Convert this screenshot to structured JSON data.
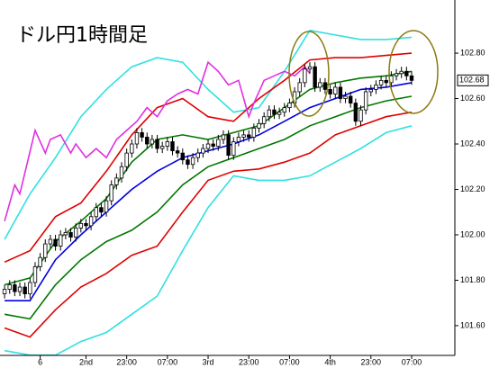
{
  "chart_data": {
    "type": "candlestick",
    "title": "ドル円1時間足",
    "xlim": [
      -0.9,
      88.5
    ],
    "ylim": [
      101.469,
      103.034
    ],
    "yticks": [
      {
        "value": 101.6,
        "label": "101.60"
      },
      {
        "value": 101.8,
        "label": "101.80"
      },
      {
        "value": 102.0,
        "label": "102.00"
      },
      {
        "value": 102.2,
        "label": "102.20"
      },
      {
        "value": 102.4,
        "label": "102.40"
      },
      {
        "value": 102.6,
        "label": "102.60"
      },
      {
        "value": 102.8,
        "label": "102.80"
      }
    ],
    "xticks": [
      {
        "value": 7,
        "label": "6"
      },
      {
        "value": 16,
        "label": "2nd"
      },
      {
        "value": 24,
        "label": "23:00"
      },
      {
        "value": 32,
        "label": "07:00"
      },
      {
        "value": 40,
        "label": "3rd"
      },
      {
        "value": 48,
        "label": "23:00"
      },
      {
        "value": 56,
        "label": "07:00"
      },
      {
        "value": 64,
        "label": "4th"
      },
      {
        "value": 72,
        "label": "23:00"
      },
      {
        "value": 80,
        "label": "07:00"
      }
    ],
    "current_price": 102.68,
    "x": [
      0,
      1,
      2,
      3,
      4,
      5,
      6,
      7,
      8,
      9,
      10,
      11,
      12,
      13,
      14,
      15,
      16,
      17,
      18,
      19,
      20,
      21,
      22,
      23,
      24,
      25,
      26,
      27,
      28,
      29,
      30,
      31,
      32,
      33,
      34,
      35,
      36,
      37,
      38,
      39,
      40,
      41,
      42,
      43,
      44,
      45,
      46,
      47,
      48,
      49,
      50,
      51,
      52,
      53,
      54,
      55,
      56,
      57,
      58,
      59,
      60,
      61,
      62,
      63,
      64,
      65,
      66,
      67,
      68,
      69,
      70,
      71,
      72,
      73,
      74,
      75,
      76,
      77,
      78,
      79,
      80
    ],
    "open": [
      101.74,
      101.76,
      101.78,
      101.75,
      101.77,
      101.74,
      101.79,
      101.86,
      101.9,
      101.96,
      101.98,
      101.95,
      102.0,
      102.01,
      101.99,
      102.03,
      102.05,
      102.04,
      102.08,
      102.12,
      102.1,
      102.15,
      102.22,
      102.25,
      102.3,
      102.36,
      102.4,
      102.45,
      102.43,
      102.4,
      102.42,
      102.38,
      102.39,
      102.41,
      102.37,
      102.36,
      102.33,
      102.31,
      102.34,
      102.36,
      102.38,
      102.4,
      102.39,
      102.42,
      102.44,
      102.35,
      102.41,
      102.43,
      102.44,
      102.43,
      102.47,
      102.49,
      102.52,
      102.55,
      102.53,
      102.54,
      102.56,
      102.58,
      102.63,
      102.67,
      102.73,
      102.74,
      102.65,
      102.67,
      102.64,
      102.62,
      102.65,
      102.6,
      102.61,
      102.58,
      102.5,
      102.55,
      102.63,
      102.64,
      102.66,
      102.68,
      102.67,
      102.7,
      102.71,
      102.72,
      102.7
    ],
    "high": [
      101.78,
      101.8,
      101.8,
      101.79,
      101.79,
      101.81,
      101.88,
      101.92,
      101.98,
      102.0,
      102.0,
      102.02,
      102.03,
      102.03,
      102.05,
      102.07,
      102.07,
      102.1,
      102.14,
      102.14,
      102.17,
      102.24,
      102.27,
      102.32,
      102.38,
      102.42,
      102.47,
      102.47,
      102.45,
      102.44,
      102.44,
      102.41,
      102.43,
      102.43,
      102.39,
      102.38,
      102.35,
      102.36,
      102.38,
      102.4,
      102.42,
      102.42,
      102.44,
      102.46,
      102.46,
      102.43,
      102.45,
      102.46,
      102.46,
      102.49,
      102.51,
      102.54,
      102.57,
      102.57,
      102.56,
      102.58,
      102.6,
      102.65,
      102.69,
      102.75,
      102.76,
      102.76,
      102.69,
      102.69,
      102.66,
      102.67,
      102.67,
      102.63,
      102.63,
      102.6,
      102.57,
      102.65,
      102.66,
      102.68,
      102.7,
      102.7,
      102.72,
      102.73,
      102.74,
      102.74,
      102.72
    ],
    "low": [
      101.72,
      101.74,
      101.73,
      101.73,
      101.72,
      101.72,
      101.77,
      101.84,
      101.88,
      101.94,
      101.93,
      101.93,
      101.98,
      101.97,
      101.97,
      102.01,
      102.02,
      102.02,
      102.06,
      102.08,
      102.08,
      102.13,
      102.2,
      102.23,
      102.28,
      102.34,
      102.38,
      102.41,
      102.38,
      102.38,
      102.36,
      102.36,
      102.37,
      102.35,
      102.34,
      102.31,
      102.29,
      102.29,
      102.32,
      102.34,
      102.36,
      102.37,
      102.37,
      102.4,
      102.33,
      102.33,
      102.39,
      102.41,
      102.41,
      102.41,
      102.45,
      102.47,
      102.5,
      102.51,
      102.51,
      102.52,
      102.54,
      102.56,
      102.61,
      102.65,
      102.71,
      102.63,
      102.63,
      102.62,
      102.6,
      102.6,
      102.58,
      102.58,
      102.56,
      102.48,
      102.48,
      102.53,
      102.61,
      102.62,
      102.64,
      102.65,
      102.65,
      102.68,
      102.69,
      102.68,
      102.66
    ],
    "close": [
      101.76,
      101.78,
      101.75,
      101.77,
      101.74,
      101.79,
      101.86,
      101.9,
      101.96,
      101.98,
      101.95,
      102.0,
      102.01,
      101.99,
      102.03,
      102.05,
      102.04,
      102.08,
      102.12,
      102.1,
      102.15,
      102.22,
      102.25,
      102.3,
      102.36,
      102.4,
      102.45,
      102.43,
      102.4,
      102.42,
      102.38,
      102.39,
      102.41,
      102.37,
      102.36,
      102.33,
      102.31,
      102.34,
      102.36,
      102.38,
      102.4,
      102.39,
      102.42,
      102.44,
      102.35,
      102.41,
      102.43,
      102.44,
      102.43,
      102.47,
      102.49,
      102.52,
      102.55,
      102.53,
      102.54,
      102.56,
      102.58,
      102.63,
      102.67,
      102.73,
      102.74,
      102.65,
      102.67,
      102.64,
      102.62,
      102.65,
      102.6,
      102.61,
      102.58,
      102.5,
      102.55,
      102.63,
      102.64,
      102.66,
      102.68,
      102.67,
      102.7,
      102.71,
      102.72,
      102.7,
      102.68
    ],
    "lines": [
      {
        "color": "#30e0e0",
        "x": [
          0,
          5,
          10,
          15,
          20,
          25,
          30,
          35,
          40,
          45,
          50,
          55,
          60,
          65,
          70,
          75,
          80
        ],
        "values": [
          101.98,
          102.18,
          102.34,
          102.52,
          102.64,
          102.74,
          102.78,
          102.76,
          102.64,
          102.54,
          102.56,
          102.72,
          102.9,
          102.88,
          102.86,
          102.86,
          102.87
        ]
      },
      {
        "color": "#30e0e0",
        "x": [
          0,
          5,
          10,
          15,
          20,
          25,
          30,
          35,
          40,
          45,
          50,
          55,
          60,
          65,
          70,
          75,
          80
        ],
        "values": [
          101.49,
          101.47,
          101.47,
          101.53,
          101.57,
          101.65,
          101.73,
          101.93,
          102.12,
          102.26,
          102.24,
          102.24,
          102.26,
          102.32,
          102.38,
          102.45,
          102.48
        ]
      },
      {
        "color": "#e00000",
        "x": [
          0,
          5,
          10,
          15,
          20,
          25,
          30,
          35,
          40,
          45,
          50,
          55,
          60,
          65,
          70,
          75,
          80
        ],
        "values": [
          101.88,
          101.93,
          102.08,
          102.14,
          102.28,
          102.44,
          102.56,
          102.6,
          102.52,
          102.5,
          102.6,
          102.68,
          102.77,
          102.78,
          102.78,
          102.79,
          102.8
        ]
      },
      {
        "color": "#e00000",
        "x": [
          0,
          5,
          10,
          15,
          20,
          25,
          30,
          35,
          40,
          45,
          50,
          55,
          60,
          65,
          70,
          75,
          80
        ],
        "values": [
          101.59,
          101.55,
          101.67,
          101.77,
          101.83,
          101.91,
          101.95,
          102.1,
          102.24,
          102.28,
          102.29,
          102.32,
          102.36,
          102.44,
          102.48,
          102.52,
          102.54
        ]
      },
      {
        "color": "#007800",
        "x": [
          0,
          5,
          10,
          15,
          20,
          25,
          30,
          35,
          40,
          45,
          50,
          55,
          60,
          65,
          70,
          75,
          80
        ],
        "values": [
          101.78,
          101.81,
          101.97,
          102.06,
          102.16,
          102.32,
          102.42,
          102.44,
          102.42,
          102.45,
          102.48,
          102.56,
          102.64,
          102.67,
          102.69,
          102.7,
          102.72
        ]
      },
      {
        "color": "#007800",
        "x": [
          0,
          5,
          10,
          15,
          20,
          25,
          30,
          35,
          40,
          45,
          50,
          55,
          60,
          65,
          70,
          75,
          80
        ],
        "values": [
          101.65,
          101.63,
          101.78,
          101.89,
          101.97,
          102.02,
          102.1,
          102.22,
          102.3,
          102.34,
          102.38,
          102.42,
          102.48,
          102.52,
          102.56,
          102.59,
          102.61
        ]
      },
      {
        "color": "#0000e0",
        "x": [
          0,
          5,
          10,
          15,
          20,
          25,
          30,
          35,
          40,
          45,
          50,
          55,
          60,
          65,
          70,
          75,
          80
        ],
        "values": [
          101.71,
          101.71,
          101.89,
          102.0,
          102.1,
          102.2,
          102.28,
          102.34,
          102.37,
          102.4,
          102.44,
          102.5,
          102.56,
          102.6,
          102.64,
          102.65,
          102.67
        ]
      },
      {
        "color": "#e030e0",
        "x": [
          0,
          2,
          3,
          6,
          8,
          9,
          11,
          13,
          14,
          16,
          18,
          20,
          22,
          24,
          26,
          28,
          30,
          32,
          34,
          36,
          38,
          40,
          42,
          44,
          46,
          48,
          49,
          51,
          53,
          55,
          57,
          59,
          60
        ],
        "values": [
          102.06,
          102.22,
          102.18,
          102.46,
          102.36,
          102.42,
          102.44,
          102.36,
          102.4,
          102.34,
          102.38,
          102.34,
          102.42,
          102.46,
          102.5,
          102.56,
          102.52,
          102.59,
          102.62,
          102.64,
          102.62,
          102.76,
          102.72,
          102.66,
          102.68,
          102.52,
          102.58,
          102.68,
          102.7,
          102.72,
          102.7,
          102.74,
          102.71
        ]
      }
    ]
  }
}
